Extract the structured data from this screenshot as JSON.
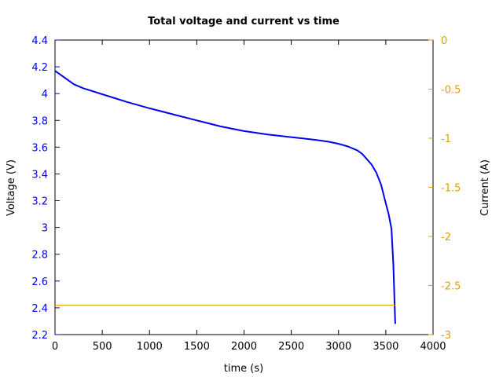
{
  "chart_data": {
    "type": "line",
    "title": "Total voltage and current vs time",
    "xlabel": "time (s)",
    "ylabel": "Voltage (V)",
    "y2label": "Current (A)",
    "xlim": [
      0,
      4000
    ],
    "ylim": [
      2.2,
      4.4
    ],
    "y2lim": [
      -3,
      0
    ],
    "xticks": [
      0,
      500,
      1000,
      1500,
      2000,
      2500,
      3000,
      3500,
      4000
    ],
    "yticks": [
      2.2,
      2.4,
      2.6,
      2.8,
      3.0,
      3.2,
      3.4,
      3.6,
      3.8,
      4.0,
      4.2,
      4.4
    ],
    "ytick_labels": [
      "2.2",
      "2.4",
      "2.6",
      "2.8",
      "3",
      "3.2",
      "3.4",
      "3.6",
      "3.8",
      "4",
      "4.2",
      "4.4"
    ],
    "y2ticks": [
      -3,
      -2.5,
      -2,
      -1.5,
      -1,
      -0.5,
      0
    ],
    "y2tick_labels": [
      "-3",
      "-2.5",
      "-2",
      "-1.5",
      "-1",
      "-0.5",
      "0"
    ],
    "grid": false,
    "colors": {
      "voltage": "#0000ee",
      "current": "#e0a000",
      "left_axis": "#0000ee",
      "right_axis": "#e0a000",
      "frame": "#000000"
    },
    "series": [
      {
        "axis": "left",
        "x": [
          0,
          100,
          200,
          300,
          500,
          750,
          1000,
          1250,
          1500,
          1750,
          2000,
          2250,
          2500,
          2750,
          2900,
          3000,
          3100,
          3200,
          3250,
          3300,
          3350,
          3400,
          3450,
          3500,
          3530,
          3560,
          3580,
          3590,
          3600
        ],
        "y": [
          4.17,
          4.12,
          4.07,
          4.04,
          3.995,
          3.94,
          3.89,
          3.845,
          3.8,
          3.755,
          3.72,
          3.695,
          3.675,
          3.655,
          3.64,
          3.625,
          3.605,
          3.575,
          3.55,
          3.51,
          3.47,
          3.41,
          3.32,
          3.18,
          3.1,
          2.99,
          2.72,
          2.5,
          2.28
        ]
      },
      {
        "axis": "right",
        "x": [
          0,
          3600
        ],
        "y": [
          -2.7,
          -2.7
        ]
      }
    ]
  }
}
